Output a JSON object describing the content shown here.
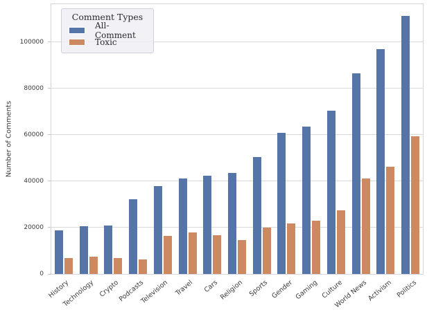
{
  "chart_data": {
    "type": "bar",
    "title": "",
    "xlabel": "",
    "ylabel": "Number of Comments",
    "legend_title": "Comment Types",
    "legend_position": "upper-left",
    "grid": true,
    "ylim": [
      0,
      116300
    ],
    "yticks": [
      0,
      20000,
      40000,
      60000,
      80000,
      100000
    ],
    "categories": [
      "History",
      "Technology",
      "Crypto",
      "Podcasts",
      "Television",
      "Travel",
      "Cars",
      "Religion",
      "Sports",
      "Gender",
      "Gaming",
      "Culture",
      "World News",
      "Activism",
      "Politics"
    ],
    "series": [
      {
        "name": "All-Comment",
        "color": "#5574a7",
        "values": [
          18700,
          20500,
          21000,
          32300,
          38000,
          41300,
          42400,
          43700,
          50500,
          60900,
          63600,
          70300,
          86600,
          97000,
          111200
        ]
      },
      {
        "name": "Toxic",
        "color": "#cd8a62",
        "values": [
          6900,
          7500,
          6900,
          6200,
          16300,
          18000,
          16700,
          14500,
          20100,
          21800,
          23100,
          27400,
          41200,
          46300,
          59400
        ]
      }
    ]
  }
}
